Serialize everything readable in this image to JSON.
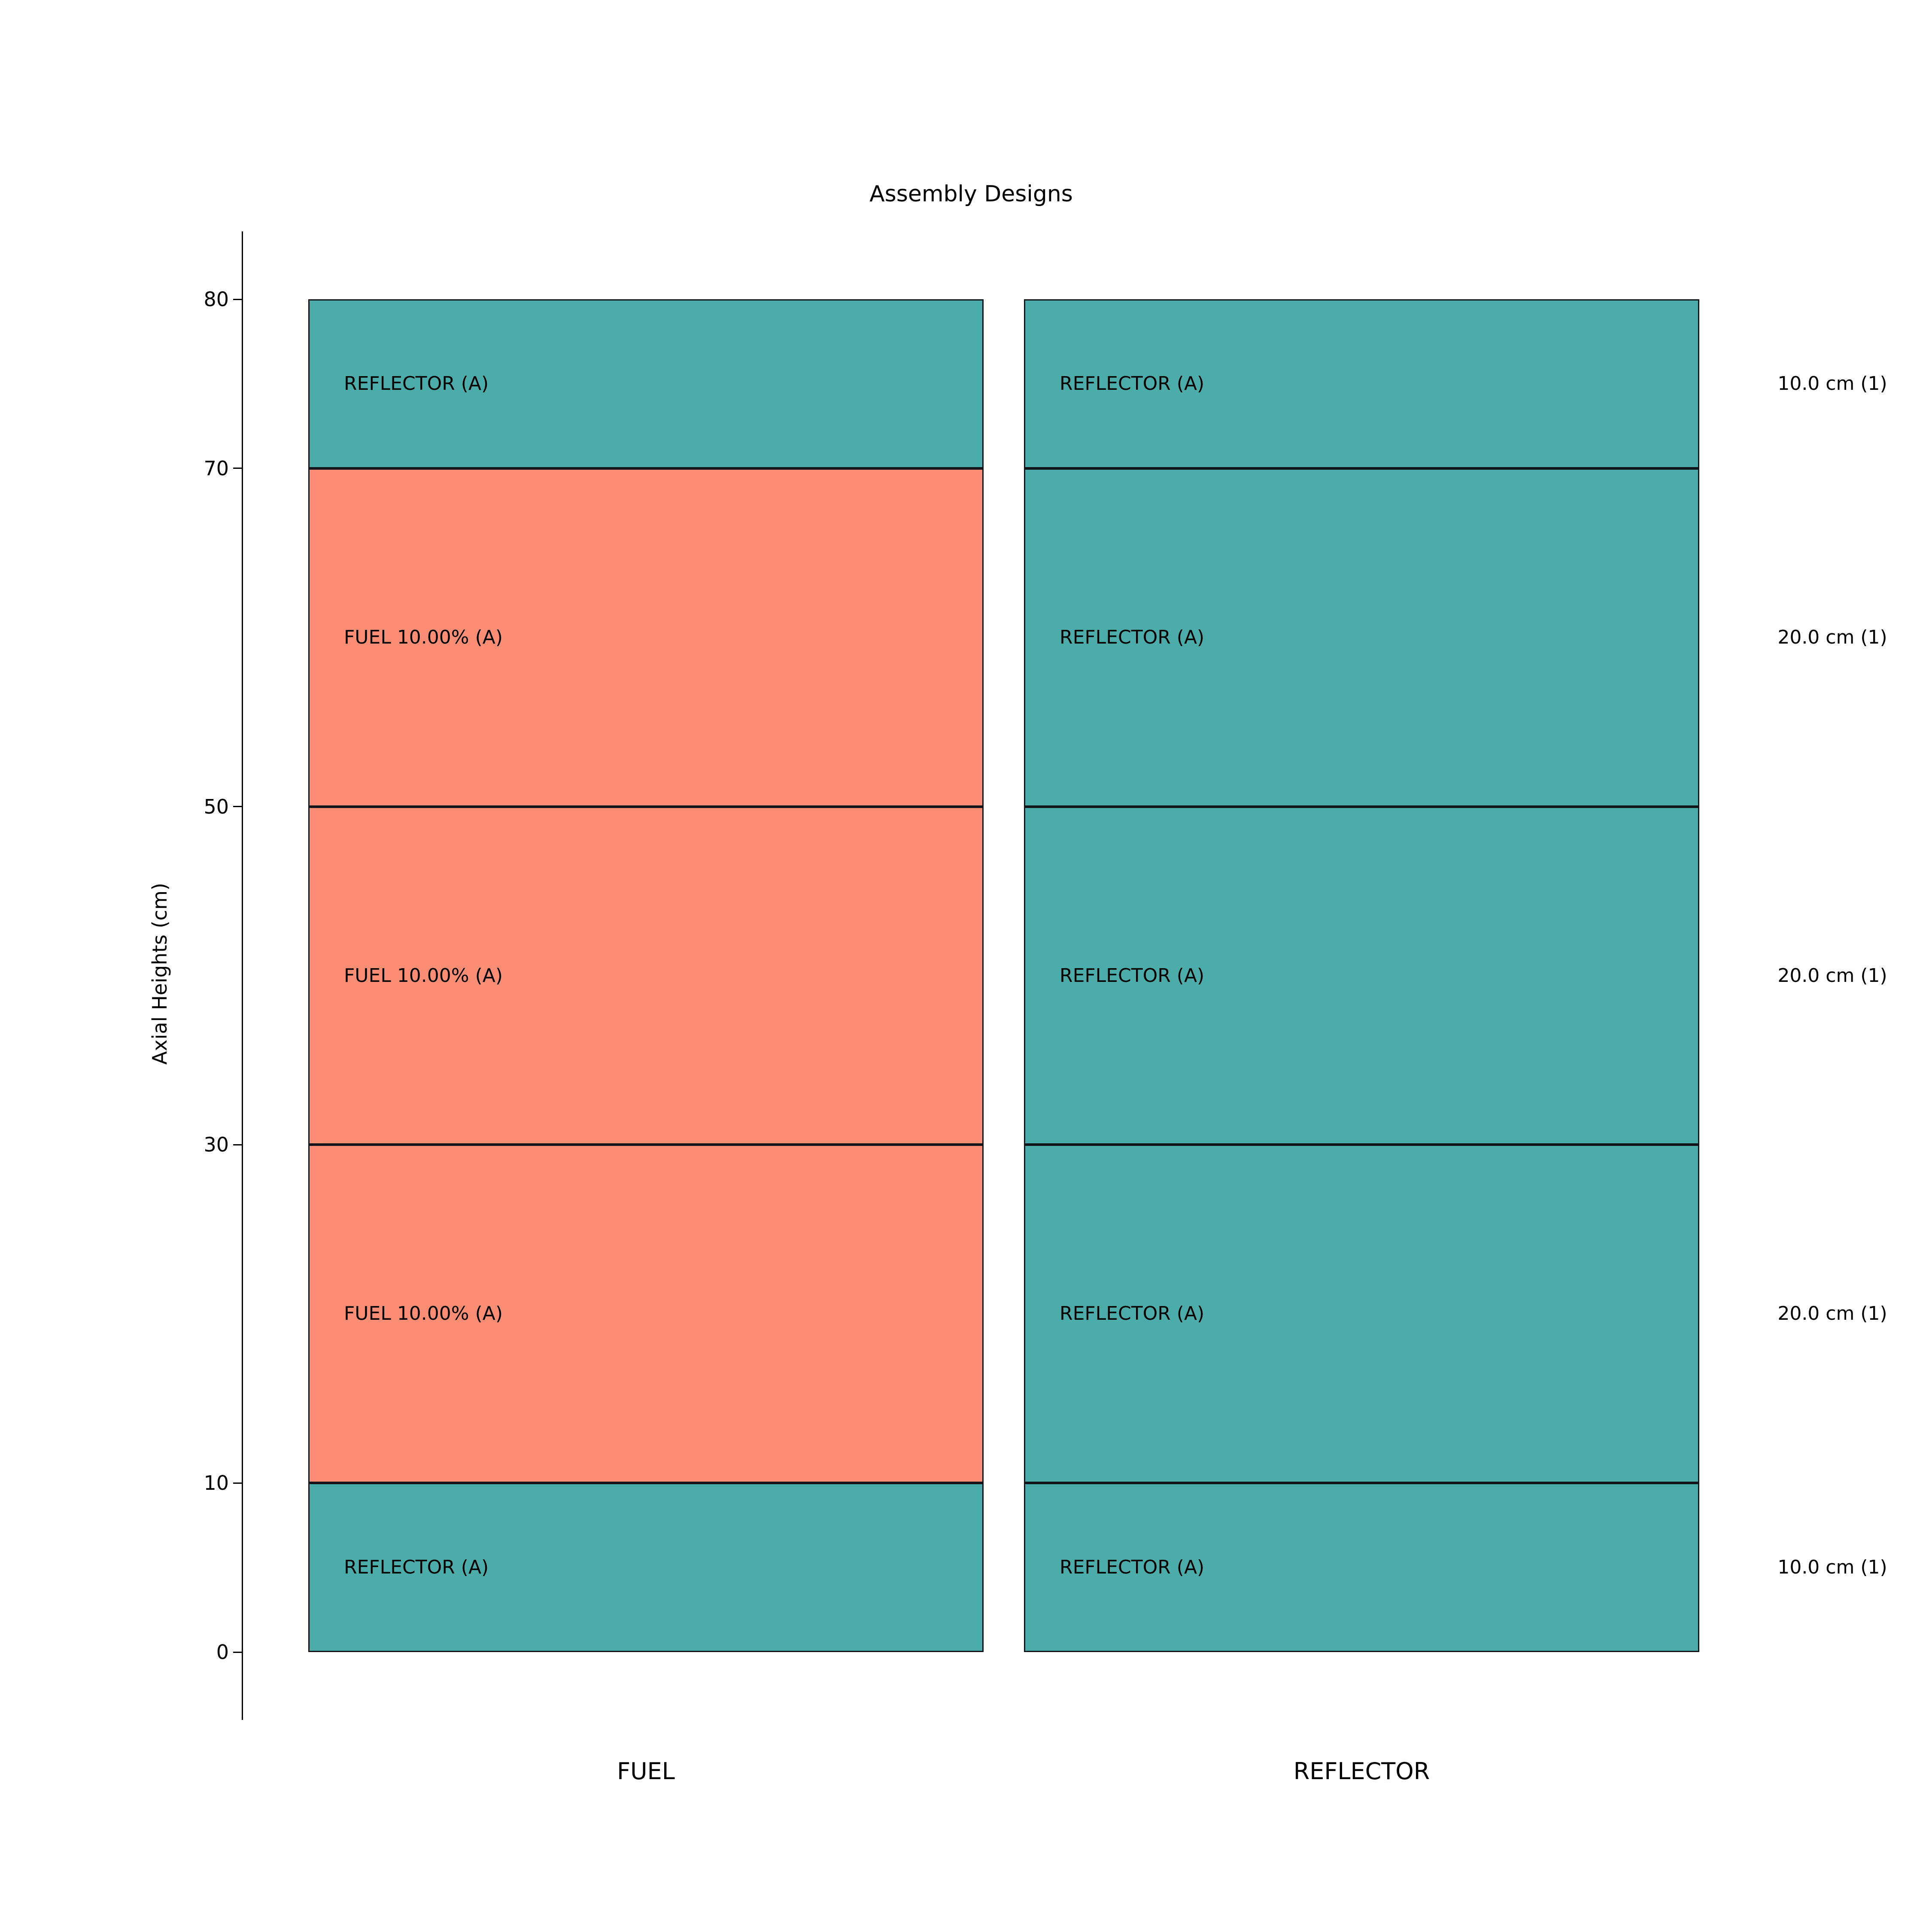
{
  "chart_data": {
    "type": "bar",
    "subtype": "stacked-axial-assembly-layout",
    "title": "Assembly Designs",
    "ylabel": "Axial Heights (cm)",
    "xlabel": "",
    "categories": [
      "FUEL",
      "REFLECTOR"
    ],
    "ylim": [
      0,
      80
    ],
    "yticks": [
      0,
      10,
      30,
      50,
      70,
      80
    ],
    "ytick_labels": [
      "0",
      "10",
      "30",
      "50",
      "70",
      "80"
    ],
    "grid": false,
    "legend_position": "none",
    "columns": [
      {
        "name": "FUEL",
        "segments": [
          {
            "from": 0,
            "to": 10,
            "height_cm": 10,
            "label": "REFLECTOR (A)",
            "material": "reflector"
          },
          {
            "from": 10,
            "to": 30,
            "height_cm": 20,
            "label": "FUEL 10.00% (A)",
            "material": "fuel"
          },
          {
            "from": 30,
            "to": 50,
            "height_cm": 20,
            "label": "FUEL 10.00% (A)",
            "material": "fuel"
          },
          {
            "from": 50,
            "to": 70,
            "height_cm": 20,
            "label": "FUEL 10.00% (A)",
            "material": "fuel"
          },
          {
            "from": 70,
            "to": 80,
            "height_cm": 10,
            "label": "REFLECTOR (A)",
            "material": "reflector"
          }
        ]
      },
      {
        "name": "REFLECTOR",
        "segments": [
          {
            "from": 0,
            "to": 10,
            "height_cm": 10,
            "label": "REFLECTOR (A)",
            "material": "reflector"
          },
          {
            "from": 10,
            "to": 30,
            "height_cm": 20,
            "label": "REFLECTOR (A)",
            "material": "reflector"
          },
          {
            "from": 30,
            "to": 50,
            "height_cm": 20,
            "label": "REFLECTOR (A)",
            "material": "reflector"
          },
          {
            "from": 50,
            "to": 70,
            "height_cm": 20,
            "label": "REFLECTOR (A)",
            "material": "reflector"
          },
          {
            "from": 70,
            "to": 80,
            "height_cm": 10,
            "label": "REFLECTOR (A)",
            "material": "reflector"
          }
        ]
      }
    ],
    "segment_annotations": [
      "10.0 cm (1)",
      "20.0 cm (1)",
      "20.0 cm (1)",
      "20.0 cm (1)",
      "10.0 cm (1)"
    ],
    "colors": {
      "fuel": "#fa8d74",
      "reflector": "#4baca9",
      "edge": "#111418",
      "axis": "#000000"
    }
  }
}
